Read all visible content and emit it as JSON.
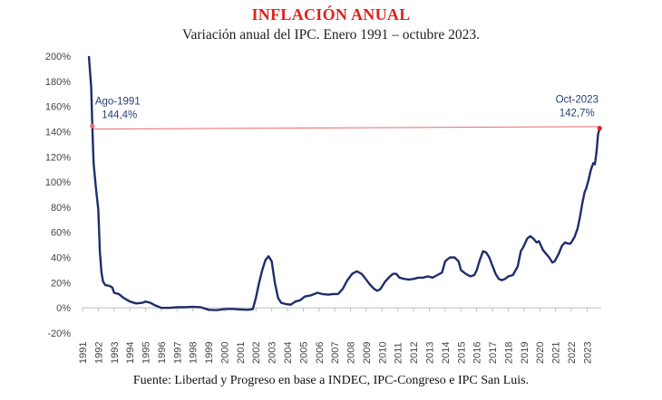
{
  "title": "INFLACIÓN ANUAL",
  "subtitle": "Variación anual del IPC. Enero 1991 – octubre 2023.",
  "source": "Fuente: Libertad y Progreso en base a INDEC, IPC-Congreso e IPC San Luis.",
  "colors": {
    "title": "#e0211d",
    "series": "#1f2d6b",
    "reference_line": "#e86a6a",
    "marker": "#e0211d"
  },
  "chart_data": {
    "type": "line",
    "ylim": [
      -20,
      200
    ],
    "xlim": [
      1991,
      2023.9
    ],
    "y_ticks": [
      -20,
      0,
      20,
      40,
      60,
      80,
      100,
      120,
      140,
      160,
      180,
      200
    ],
    "y_tick_labels": [
      "-20%",
      "0%",
      "20%",
      "40%",
      "60%",
      "80%",
      "100%",
      "120%",
      "140%",
      "160%",
      "180%",
      "200%"
    ],
    "x_tick_labels": [
      "1991",
      "1992",
      "1993",
      "1994",
      "1995",
      "1996",
      "1997",
      "1998",
      "1999",
      "2000",
      "2001",
      "2002",
      "2003",
      "2004",
      "2005",
      "2006",
      "2007",
      "2008",
      "2009",
      "2010",
      "2011",
      "2012",
      "2013",
      "2014",
      "2015",
      "2016",
      "2017",
      "2018",
      "2019",
      "2020",
      "2021",
      "2022",
      "2023"
    ],
    "grid": false,
    "legend": "none",
    "series": [
      {
        "points": [
          [
            1991.4,
            200
          ],
          [
            1991.55,
            175
          ],
          [
            1991.62,
            144.4
          ],
          [
            1991.7,
            115
          ],
          [
            1991.85,
            95
          ],
          [
            1992.0,
            78
          ],
          [
            1992.1,
            45
          ],
          [
            1992.2,
            28
          ],
          [
            1992.3,
            21
          ],
          [
            1992.45,
            18
          ],
          [
            1992.7,
            17.5
          ],
          [
            1992.9,
            16
          ],
          [
            1993.0,
            12
          ],
          [
            1993.3,
            11
          ],
          [
            1993.6,
            8
          ],
          [
            1994.0,
            5
          ],
          [
            1994.4,
            3.5
          ],
          [
            1994.8,
            4
          ],
          [
            1995.0,
            5
          ],
          [
            1995.3,
            4
          ],
          [
            1995.6,
            2
          ],
          [
            1996.0,
            0
          ],
          [
            1996.5,
            0
          ],
          [
            1997.0,
            0.5
          ],
          [
            1997.5,
            0.5
          ],
          [
            1998.0,
            0.8
          ],
          [
            1998.5,
            0.5
          ],
          [
            1999.0,
            -1.5
          ],
          [
            1999.5,
            -1.8
          ],
          [
            2000.0,
            -1
          ],
          [
            2000.5,
            -0.8
          ],
          [
            2001.0,
            -1.2
          ],
          [
            2001.5,
            -1.5
          ],
          [
            2001.8,
            -1
          ],
          [
            2002.0,
            8
          ],
          [
            2002.2,
            20
          ],
          [
            2002.4,
            30
          ],
          [
            2002.6,
            38
          ],
          [
            2002.8,
            41
          ],
          [
            2003.0,
            37
          ],
          [
            2003.2,
            20
          ],
          [
            2003.4,
            8
          ],
          [
            2003.6,
            4
          ],
          [
            2003.9,
            3
          ],
          [
            2004.2,
            2.5
          ],
          [
            2004.5,
            5
          ],
          [
            2004.8,
            6
          ],
          [
            2005.1,
            9
          ],
          [
            2005.5,
            10
          ],
          [
            2005.9,
            12
          ],
          [
            2006.2,
            11
          ],
          [
            2006.6,
            10.5
          ],
          [
            2006.9,
            11
          ],
          [
            2007.2,
            11
          ],
          [
            2007.5,
            15
          ],
          [
            2007.8,
            22
          ],
          [
            2008.1,
            27
          ],
          [
            2008.4,
            29
          ],
          [
            2008.7,
            27
          ],
          [
            2008.9,
            24
          ],
          [
            2009.2,
            19
          ],
          [
            2009.5,
            15
          ],
          [
            2009.7,
            13.5
          ],
          [
            2009.9,
            15
          ],
          [
            2010.2,
            21
          ],
          [
            2010.5,
            25
          ],
          [
            2010.7,
            27
          ],
          [
            2010.9,
            27
          ],
          [
            2011.1,
            24
          ],
          [
            2011.4,
            23
          ],
          [
            2011.7,
            22.5
          ],
          [
            2012.0,
            23
          ],
          [
            2012.3,
            24
          ],
          [
            2012.6,
            24
          ],
          [
            2012.9,
            25
          ],
          [
            2013.2,
            24
          ],
          [
            2013.5,
            26
          ],
          [
            2013.8,
            28
          ],
          [
            2014.0,
            37
          ],
          [
            2014.3,
            40
          ],
          [
            2014.6,
            40
          ],
          [
            2014.85,
            37
          ],
          [
            2015.0,
            30
          ],
          [
            2015.3,
            27
          ],
          [
            2015.6,
            25
          ],
          [
            2015.85,
            26
          ],
          [
            2016.0,
            30
          ],
          [
            2016.2,
            38
          ],
          [
            2016.4,
            45
          ],
          [
            2016.6,
            44
          ],
          [
            2016.8,
            40
          ],
          [
            2016.95,
            35
          ],
          [
            2017.2,
            27
          ],
          [
            2017.4,
            23
          ],
          [
            2017.6,
            22
          ],
          [
            2017.8,
            23
          ],
          [
            2018.0,
            25
          ],
          [
            2018.3,
            26
          ],
          [
            2018.6,
            33
          ],
          [
            2018.8,
            45
          ],
          [
            2018.95,
            48
          ],
          [
            2019.2,
            55
          ],
          [
            2019.4,
            57
          ],
          [
            2019.6,
            55
          ],
          [
            2019.8,
            52
          ],
          [
            2019.95,
            53
          ],
          [
            2020.2,
            46
          ],
          [
            2020.4,
            43
          ],
          [
            2020.6,
            40
          ],
          [
            2020.8,
            36
          ],
          [
            2020.95,
            37
          ],
          [
            2021.2,
            43
          ],
          [
            2021.4,
            49
          ],
          [
            2021.6,
            52
          ],
          [
            2021.8,
            51
          ],
          [
            2021.95,
            51
          ],
          [
            2022.2,
            56
          ],
          [
            2022.4,
            63
          ],
          [
            2022.55,
            72
          ],
          [
            2022.7,
            83
          ],
          [
            2022.85,
            92
          ],
          [
            2022.95,
            95
          ],
          [
            2023.1,
            102
          ],
          [
            2023.25,
            110
          ],
          [
            2023.4,
            115
          ],
          [
            2023.5,
            114
          ],
          [
            2023.6,
            124
          ],
          [
            2023.7,
            138
          ],
          [
            2023.8,
            142.7
          ]
        ]
      }
    ],
    "reference_line": {
      "from": [
        1991.62,
        142
      ],
      "to": [
        2023.8,
        144
      ]
    },
    "annotations": [
      {
        "label": "Ago-1991",
        "value_label": "144,4%",
        "x": 1991.62,
        "y": 144.4
      },
      {
        "label": "Oct-2023",
        "value_label": "142,7%",
        "x": 2023.8,
        "y": 142.7
      }
    ]
  }
}
